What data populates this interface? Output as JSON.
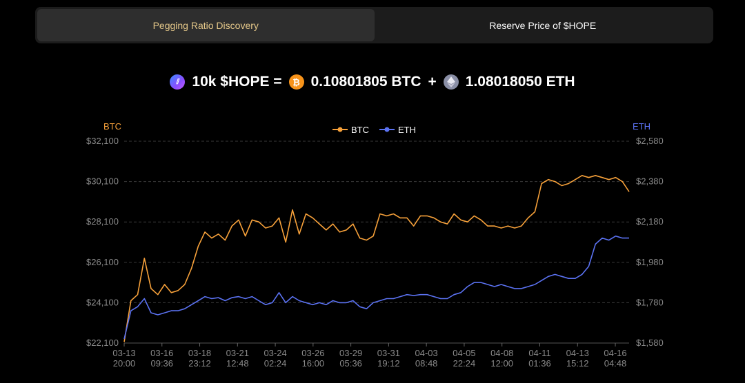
{
  "tabs": [
    {
      "label": "Pegging Ratio Discovery",
      "active": true
    },
    {
      "label": "Reserve Price of $HOPE",
      "active": false
    }
  ],
  "ratio": {
    "lhs": "10k $HOPE =",
    "btc_value": "0.10801805 BTC",
    "plus": "+",
    "eth_value": "1.08018050 ETH"
  },
  "colors": {
    "btc": "#f7a13a",
    "eth": "#5b72f2",
    "grid": "#3a3a3a",
    "tick": "#8a8a8a",
    "active_tab_text": "#e6c98a"
  },
  "chart_data": {
    "type": "line",
    "left_axis_label": "BTC",
    "right_axis_label": "ETH",
    "legend": [
      "BTC",
      "ETH"
    ],
    "legend_position": "top-center",
    "grid": true,
    "y_left_ticks": [
      "$32,100",
      "$30,100",
      "$28,100",
      "$26,100",
      "$24,100",
      "$22,100"
    ],
    "y_right_ticks": [
      "$2,580",
      "$2,380",
      "$2,180",
      "$1,980",
      "$1,780",
      "$1,580"
    ],
    "y_left_range": [
      22100,
      32100
    ],
    "y_right_range": [
      1580,
      2580
    ],
    "x_ticks": [
      {
        "date": "03-13",
        "time": "20:00"
      },
      {
        "date": "03-16",
        "time": "09:36"
      },
      {
        "date": "03-18",
        "time": "23:12"
      },
      {
        "date": "03-21",
        "time": "12:48"
      },
      {
        "date": "03-24",
        "time": "02:24"
      },
      {
        "date": "03-26",
        "time": "16:00"
      },
      {
        "date": "03-29",
        "time": "05:36"
      },
      {
        "date": "03-31",
        "time": "19:12"
      },
      {
        "date": "04-03",
        "time": "08:48"
      },
      {
        "date": "04-05",
        "time": "22:24"
      },
      {
        "date": "04-08",
        "time": "12:00"
      },
      {
        "date": "04-11",
        "time": "01:36"
      },
      {
        "date": "04-13",
        "time": "15:12"
      },
      {
        "date": "04-16",
        "time": "04:48"
      }
    ],
    "series": [
      {
        "name": "BTC",
        "axis": "left",
        "values": [
          22150,
          24200,
          24500,
          26300,
          24800,
          24500,
          25000,
          24600,
          24700,
          25000,
          25800,
          26900,
          27600,
          27300,
          27500,
          27200,
          27900,
          28200,
          27400,
          28200,
          28100,
          27800,
          27900,
          28300,
          27100,
          28700,
          27500,
          28500,
          28300,
          28000,
          27700,
          28000,
          27600,
          27700,
          28000,
          27300,
          27200,
          27400,
          28500,
          28400,
          28500,
          28300,
          28300,
          27900,
          28400,
          28400,
          28300,
          28100,
          28000,
          28500,
          28200,
          28100,
          28400,
          28200,
          27900,
          27900,
          27800,
          27900,
          27800,
          27900,
          28300,
          28600,
          30000,
          30200,
          30100,
          29900,
          30000,
          30200,
          30400,
          30300,
          30400,
          30300,
          30200,
          30300,
          30100,
          29600
        ]
      },
      {
        "name": "ETH",
        "axis": "right",
        "values": [
          1600,
          1740,
          1760,
          1800,
          1730,
          1720,
          1730,
          1740,
          1740,
          1750,
          1770,
          1790,
          1810,
          1800,
          1805,
          1790,
          1805,
          1810,
          1800,
          1810,
          1790,
          1770,
          1780,
          1830,
          1780,
          1810,
          1790,
          1780,
          1770,
          1780,
          1770,
          1790,
          1780,
          1780,
          1790,
          1760,
          1750,
          1780,
          1790,
          1800,
          1800,
          1810,
          1820,
          1815,
          1820,
          1820,
          1810,
          1800,
          1800,
          1820,
          1830,
          1860,
          1880,
          1880,
          1870,
          1860,
          1870,
          1860,
          1850,
          1850,
          1860,
          1870,
          1890,
          1910,
          1920,
          1910,
          1900,
          1900,
          1920,
          1960,
          2070,
          2100,
          2090,
          2110,
          2100,
          2100
        ]
      }
    ]
  }
}
